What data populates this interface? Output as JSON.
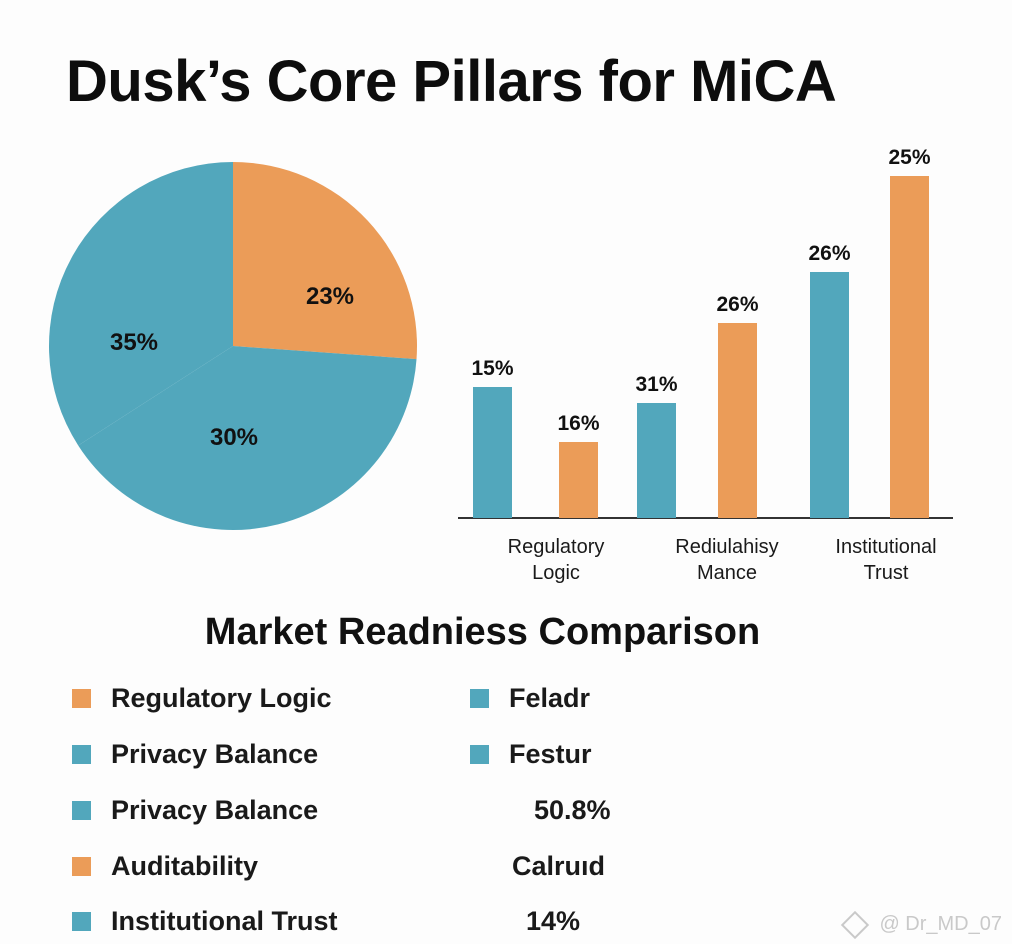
{
  "title": "Dusk’s Core Pillars for MiCA",
  "colors": {
    "teal": "#52a7bc",
    "orange": "#eb9c58",
    "axis": "#333333"
  },
  "chart_data": [
    {
      "type": "pie",
      "slices": [
        {
          "label": "23%",
          "value": 23,
          "color": "#eb9c58"
        },
        {
          "label": "35%",
          "value": 35,
          "color": "#52a7bc"
        },
        {
          "label": "30%",
          "value": 30,
          "color": "#52a7bc"
        }
      ]
    },
    {
      "type": "bar",
      "categories": [
        {
          "line1": "Regulatory",
          "line2": "Logic"
        },
        {
          "line1": "Rediulahisy",
          "line2": "Mance"
        },
        {
          "line1": "Institutional",
          "line2": "Trust"
        }
      ],
      "bars": [
        {
          "value": 15,
          "label": "15%",
          "color": "#52a7bc"
        },
        {
          "value": 16,
          "label": "16%",
          "color": "#eb9c58"
        },
        {
          "value": 31,
          "label": "31%",
          "color": "#52a7bc"
        },
        {
          "value": 26,
          "label": "26%",
          "color": "#eb9c58"
        },
        {
          "value": 26,
          "label": "26%",
          "color": "#52a7bc"
        },
        {
          "value": 25,
          "label": "25%",
          "color": "#eb9c58"
        }
      ]
    }
  ],
  "subtitle": "Market Readniess Comparison",
  "legend_left": [
    {
      "label": "Regulatory Logic",
      "color": "#eb9c58"
    },
    {
      "label": "Privacy Balance",
      "color": "#52a7bc"
    },
    {
      "label": "Privacy Balance",
      "color": "#52a7bc"
    },
    {
      "label": "Auditability",
      "color": "#eb9c58"
    },
    {
      "label": "Institutional Trust",
      "color": "#52a7bc"
    }
  ],
  "legend_right": [
    {
      "label": "Feladr",
      "color": "#52a7bc"
    },
    {
      "label": "Festur",
      "color": "#52a7bc"
    }
  ],
  "stats": [
    "50.8%",
    "Calruıd",
    "14%"
  ],
  "watermark": "@ Dr_MD_07"
}
